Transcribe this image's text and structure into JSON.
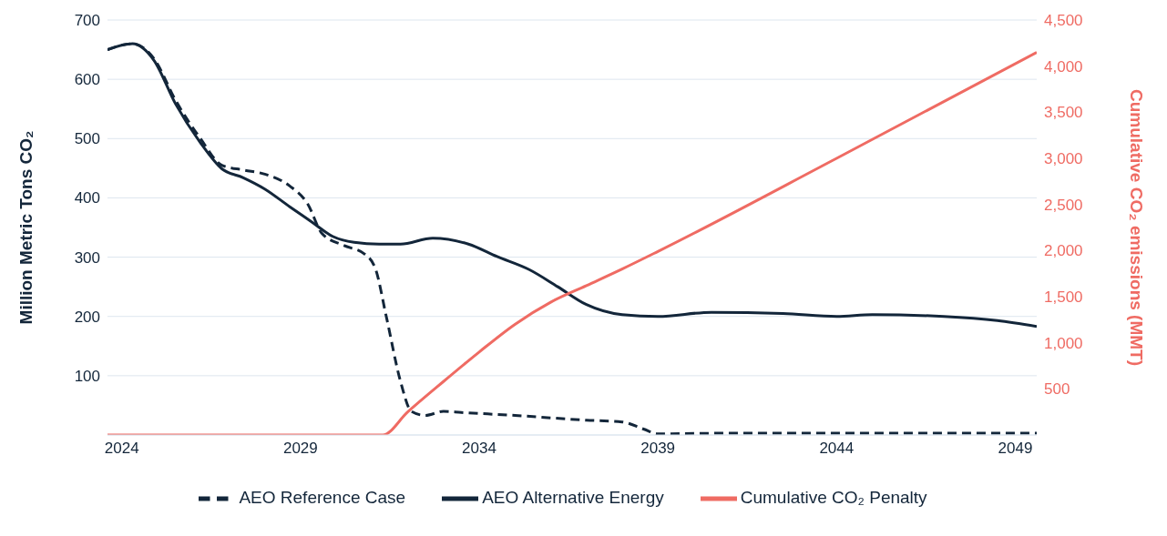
{
  "chart_data": {
    "type": "line",
    "ylabel": "Million Metric Tons CO₂",
    "y2label": "Cumulative CO₂ emissions (MMT)",
    "xlim": [
      2023.6,
      2049.6
    ],
    "xticks": [
      2024,
      2029,
      2034,
      2039,
      2044,
      2049
    ],
    "ylim": [
      0,
      700
    ],
    "yticks": [
      100,
      200,
      300,
      400,
      500,
      600,
      700
    ],
    "y2lim": [
      0,
      4500
    ],
    "y2ticks": [
      500,
      {
        "value": 1000,
        "label": "1,000"
      },
      {
        "value": 1500,
        "label": "1,500"
      },
      {
        "value": 2000,
        "label": "2,000"
      },
      {
        "value": 2500,
        "label": "2,500"
      },
      {
        "value": 3000,
        "label": "3,000"
      },
      {
        "value": 3500,
        "label": "3,500"
      },
      {
        "value": 4000,
        "label": "4,000"
      },
      {
        "value": 4500,
        "label": "4,500"
      }
    ],
    "grid": "y",
    "legend": "bottom",
    "marker": "none",
    "series": [
      {
        "name": "AEO Reference Case",
        "color": "#13263a",
        "line_style": "dashed",
        "x": [
          2023.6,
          2024.3,
          2024.9,
          2025.5,
          2026.2,
          2026.8,
          2027.4,
          2028.0,
          2028.7,
          2029.2,
          2029.6,
          2030.2,
          2030.8,
          2031.1,
          2031.4,
          2031.8,
          2032.1,
          2032.5,
          2033.0,
          2033.5,
          2035.0,
          2037.0,
          2038.0,
          2038.6,
          2039.0,
          2041.0,
          2043.0,
          2045.0,
          2047.0,
          2049.6
        ],
        "values": [
          650,
          660,
          635,
          565,
          500,
          455,
          447,
          440,
          420,
          390,
          340,
          320,
          305,
          280,
          200,
          90,
          40,
          33,
          40,
          38,
          33,
          25,
          22,
          10,
          2,
          3,
          3,
          3,
          3,
          3
        ]
      },
      {
        "name": "AEO Alternative Energy",
        "color": "#13263a",
        "line_style": "solid",
        "x": [
          2023.6,
          2024.3,
          2024.9,
          2025.5,
          2026.2,
          2026.8,
          2027.4,
          2028.0,
          2028.7,
          2029.3,
          2029.9,
          2030.5,
          2031.2,
          2031.8,
          2032.7,
          2033.7,
          2034.5,
          2035.4,
          2036.2,
          2037.0,
          2038.0,
          2039.0,
          2040.5,
          2042.5,
          2044.0,
          2045.0,
          2047.0,
          2048.5,
          2049.6
        ],
        "values": [
          650,
          660,
          632,
          559,
          493,
          449,
          434,
          415,
          385,
          360,
          335,
          325,
          322,
          322,
          332,
          322,
          301,
          279,
          250,
          220,
          203,
          200,
          207,
          205,
          200,
          203,
          200,
          193,
          183
        ]
      },
      {
        "name": "Cumulative CO₂ Penalty",
        "color": "#ef6b63",
        "line_style": "solid",
        "axis": "y2",
        "x": [
          2023.6,
          2026.0,
          2028.5,
          2030.5,
          2031.3,
          2032.0,
          2033.0,
          2034.0,
          2035.0,
          2036.0,
          2037.0,
          2038.0,
          2039.0,
          2044.0,
          2049.6
        ],
        "values": [
          0,
          0,
          0,
          0,
          0,
          250,
          580,
          900,
          1200,
          1440,
          1620,
          1800,
          1990,
          3000,
          4150
        ]
      }
    ]
  }
}
